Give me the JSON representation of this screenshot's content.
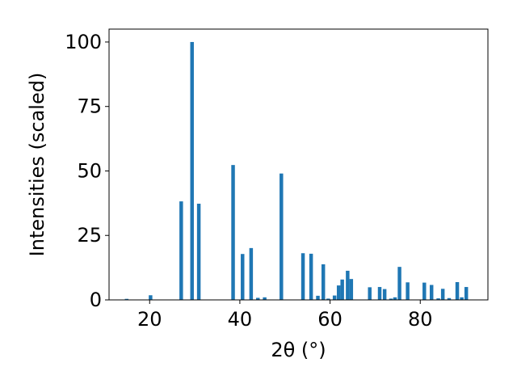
{
  "chart_data": {
    "type": "bar",
    "xlabel": "2θ (°)",
    "ylabel": "Intensities (scaled)",
    "xlim": [
      11,
      95
    ],
    "ylim": [
      0,
      105
    ],
    "x_ticks": [
      20,
      40,
      60,
      80
    ],
    "y_ticks": [
      0,
      25,
      50,
      75,
      100
    ],
    "grid": false,
    "bar_color": "#1f77b4",
    "bar_width": 0.8,
    "x": [
      14.9,
      20.2,
      27.0,
      29.4,
      30.9,
      38.5,
      40.6,
      42.5,
      44.0,
      45.5,
      49.2,
      54.0,
      55.8,
      57.3,
      58.5,
      59.6,
      61.0,
      61.9,
      62.7,
      63.9,
      64.7,
      68.8,
      71.0,
      72.1,
      73.5,
      74.4,
      75.4,
      77.2,
      80.9,
      82.5,
      84.0,
      85.0,
      86.4,
      88.2,
      89.2,
      90.2
    ],
    "values": [
      0.4,
      1.8,
      38.2,
      100.0,
      37.3,
      52.3,
      17.8,
      20.1,
      0.8,
      1.0,
      49.0,
      18.1,
      17.9,
      1.6,
      13.8,
      0.5,
      1.7,
      5.6,
      7.9,
      11.3,
      8.1,
      4.9,
      5.0,
      4.2,
      0.5,
      1.0,
      12.8,
      6.8,
      6.7,
      5.8,
      0.6,
      4.3,
      0.7,
      6.9,
      1.0,
      5.0
    ]
  }
}
